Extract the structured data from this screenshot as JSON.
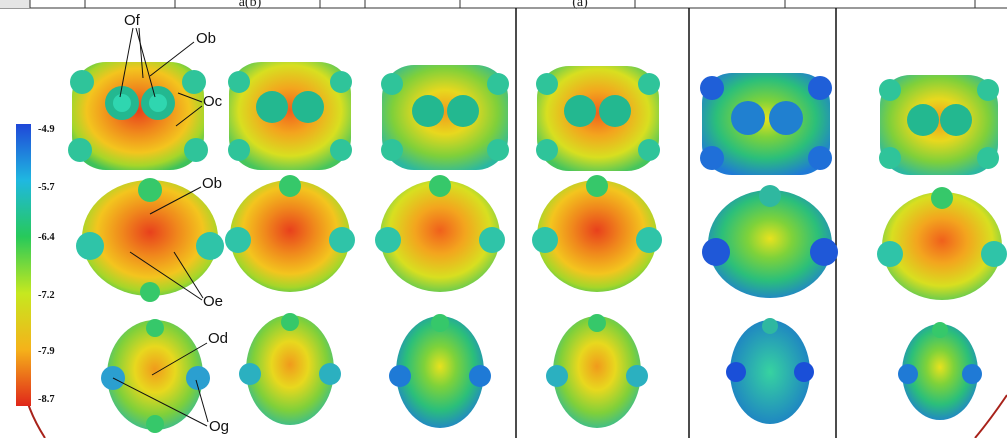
{
  "header_fragments": [
    "a(b)",
    "(a)"
  ],
  "colorbar": {
    "ticks": [
      "-4.9",
      "-5.7",
      "-6.4",
      "-7.2",
      "-7.9",
      "-8.7"
    ],
    "colors": [
      "#1f47d8",
      "#1fb8e0",
      "#27c95a",
      "#c6e81f",
      "#f5b21a",
      "#f0401a"
    ]
  },
  "annotations": {
    "of": "Of",
    "ob_top": "Ob",
    "oc": "Oc",
    "ob_mid": "Ob",
    "oe": "Oe",
    "od": "Od",
    "og": "Og"
  }
}
